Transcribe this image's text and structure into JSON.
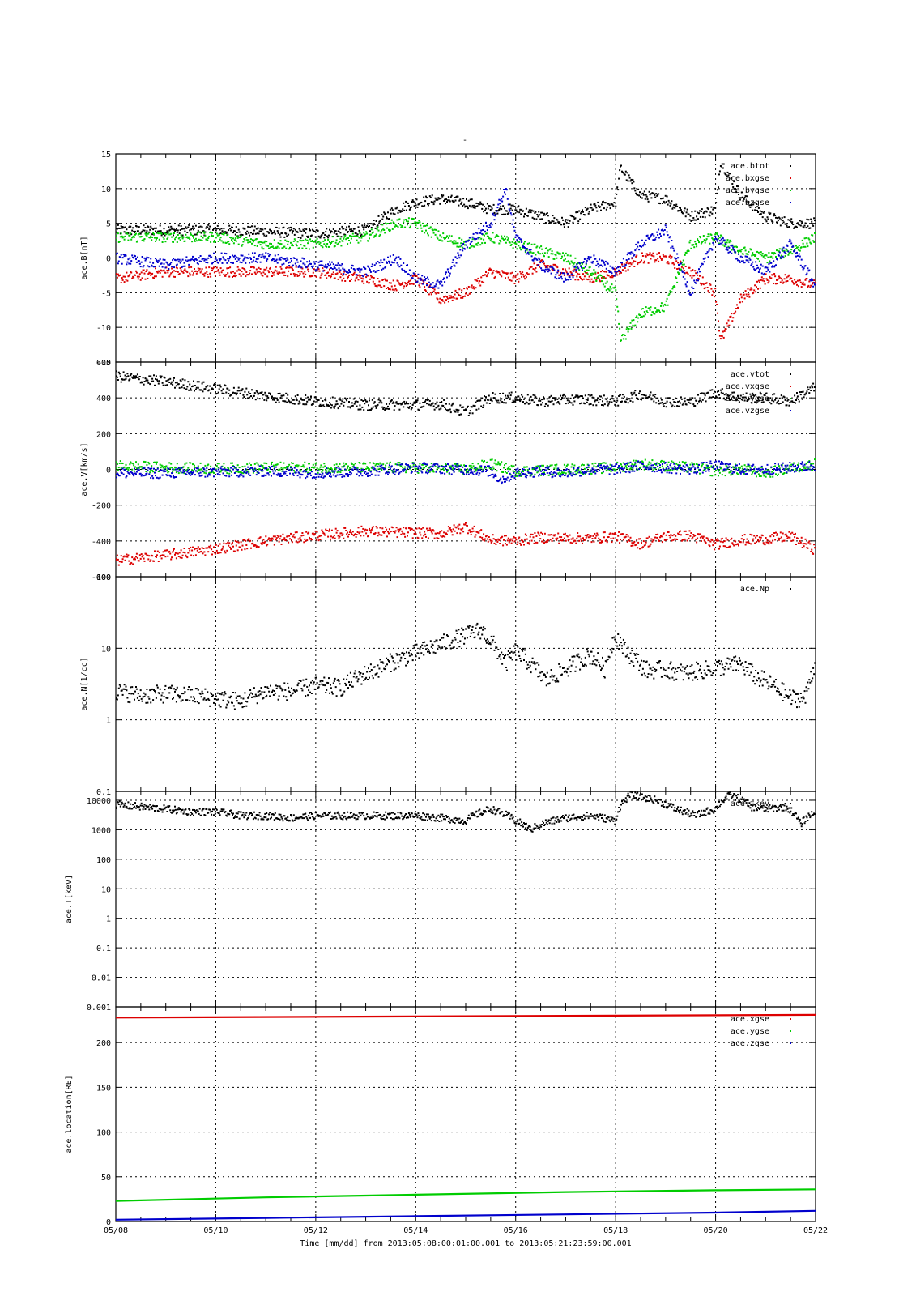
{
  "figure": {
    "title": "-",
    "xlabel": "Time [mm/dd]  from 2013:05:08:00:01:00.001  to  2013:05:21:23:59:00.001",
    "x_ticks": [
      "05/08",
      "05/10",
      "05/12",
      "05/14",
      "05/16",
      "05/18",
      "05/20",
      "05/22"
    ]
  },
  "colors": {
    "black": "#000000",
    "red": "#dd0000",
    "green": "#00cc00",
    "blue": "#0000cc",
    "grid": "#000000"
  },
  "chart_data": [
    {
      "type": "scatter",
      "ylabel": "ace.B[nT]",
      "ylim": [
        -15,
        15
      ],
      "yscale": "linear",
      "y_ticks": [
        "15",
        "10",
        "5",
        "0",
        "-5",
        "-10",
        "-15"
      ],
      "x_range_days": [
        8,
        22
      ],
      "legend": "top-right",
      "grid": true,
      "series": [
        {
          "name": "ace.btot",
          "color": "black",
          "x": [
            8,
            9,
            10,
            11,
            12,
            13,
            13.6,
            14,
            14.5,
            15,
            15.5,
            16,
            16.5,
            17,
            17.5,
            18,
            18.1,
            18.5,
            19,
            19.5,
            20,
            20.1,
            20.5,
            21,
            21.5,
            22
          ],
          "y": [
            4,
            4,
            4,
            3.8,
            3.5,
            4,
            7,
            8,
            8.5,
            8,
            7,
            7,
            6,
            5,
            7,
            8,
            13,
            9,
            8.5,
            6,
            7,
            14,
            9,
            6,
            5,
            5
          ]
        },
        {
          "name": "ace.bxgse",
          "color": "red",
          "x": [
            8,
            9,
            10,
            11,
            12,
            13,
            13.6,
            14,
            14.5,
            15,
            15.5,
            16,
            16.5,
            17,
            17.5,
            18,
            18.5,
            19,
            19.5,
            20,
            20.1,
            20.5,
            21,
            21.5,
            22
          ],
          "y": [
            -3,
            -2,
            -2,
            -2,
            -2,
            -3,
            -4,
            -3,
            -6,
            -5,
            -2,
            -3,
            -1,
            -2,
            -3,
            -2,
            0,
            0,
            -2,
            -5,
            -12,
            -6,
            -3,
            -3,
            -4
          ]
        },
        {
          "name": "ace.bygse",
          "color": "green",
          "x": [
            8,
            9,
            10,
            11,
            12,
            13,
            13.6,
            14,
            14.5,
            15,
            15.5,
            16,
            16.5,
            17,
            17.5,
            18,
            18.1,
            18.5,
            19,
            19.5,
            20,
            20.5,
            21,
            21.5,
            22
          ],
          "y": [
            3,
            3,
            3,
            2,
            2,
            3,
            5,
            5,
            3,
            2,
            3,
            2,
            1,
            0,
            -2,
            -5,
            -12,
            -8,
            -7,
            2,
            3,
            1,
            0,
            1,
            3
          ]
        },
        {
          "name": "ace.bzgse",
          "color": "blue",
          "x": [
            8,
            9,
            10,
            11,
            12,
            13,
            13.6,
            14,
            14.5,
            15,
            15.5,
            15.8,
            16,
            16.5,
            17,
            17.5,
            18,
            18.5,
            19,
            19.5,
            20,
            20.5,
            21,
            21.5,
            22
          ],
          "y": [
            0,
            -1,
            0,
            0,
            -1,
            -2,
            0,
            -3,
            -4,
            2,
            5,
            10,
            3,
            -1,
            -3,
            0,
            -2,
            2,
            4,
            -5,
            3,
            0,
            -2,
            2,
            -4
          ]
        }
      ]
    },
    {
      "type": "scatter",
      "ylabel": "ace.V[km/s]",
      "ylim": [
        -600,
        600
      ],
      "yscale": "linear",
      "y_ticks": [
        "600",
        "400",
        "200",
        "0",
        "-200",
        "-400",
        "-600"
      ],
      "x_range_days": [
        8,
        22
      ],
      "legend": "top-right",
      "grid": true,
      "series": [
        {
          "name": "ace.vtot",
          "color": "black",
          "x": [
            8,
            9,
            10,
            11,
            12,
            13,
            14,
            14.5,
            15,
            15.5,
            16,
            16.5,
            17,
            17.5,
            18,
            18.5,
            19,
            19.5,
            20,
            20.5,
            21,
            21.5,
            22
          ],
          "y": [
            520,
            490,
            450,
            410,
            380,
            360,
            360,
            365,
            320,
            400,
            400,
            380,
            390,
            390,
            380,
            420,
            380,
            375,
            430,
            400,
            400,
            380,
            460
          ]
        },
        {
          "name": "ace.vxgse",
          "color": "red",
          "x": [
            8,
            9,
            10,
            11,
            12,
            13,
            14,
            14.5,
            15,
            15.5,
            16,
            16.5,
            17,
            17.5,
            18,
            18.5,
            19,
            19.5,
            20,
            20.5,
            21,
            21.5,
            22
          ],
          "y": [
            -510,
            -480,
            -445,
            -400,
            -370,
            -345,
            -355,
            -360,
            -320,
            -395,
            -400,
            -380,
            -385,
            -385,
            -375,
            -415,
            -375,
            -370,
            -420,
            -395,
            -390,
            -375,
            -450
          ]
        },
        {
          "name": "ace.vygse",
          "color": "green",
          "x": [
            8,
            9,
            10,
            11,
            12,
            13,
            14,
            15,
            15.5,
            16,
            16.5,
            17,
            17.5,
            18,
            18.5,
            19,
            19.5,
            20,
            20.5,
            21,
            22
          ],
          "y": [
            20,
            10,
            5,
            10,
            10,
            10,
            10,
            0,
            30,
            -10,
            -5,
            0,
            5,
            10,
            30,
            20,
            10,
            -10,
            0,
            -20,
            30
          ]
        },
        {
          "name": "ace.vzgse",
          "color": "blue",
          "x": [
            8,
            9,
            10,
            11,
            12,
            13,
            14,
            15,
            15.5,
            15.7,
            16,
            16.5,
            17,
            17.5,
            18,
            18.5,
            19,
            19.5,
            20,
            20.5,
            21,
            22
          ],
          "y": [
            -20,
            -20,
            -15,
            -10,
            -20,
            -10,
            10,
            0,
            -10,
            -60,
            -20,
            -10,
            -20,
            0,
            0,
            20,
            10,
            0,
            20,
            0,
            0,
            20
          ]
        }
      ]
    },
    {
      "type": "scatter",
      "ylabel": "ace.N[1/cc]",
      "ylim": [
        0.1,
        100
      ],
      "yscale": "log",
      "y_ticks": [
        "100",
        "10",
        "1",
        "0.1"
      ],
      "x_range_days": [
        8,
        22
      ],
      "legend": "top-right",
      "grid": true,
      "series": [
        {
          "name": "ace.Np",
          "color": "black",
          "x": [
            8,
            8.5,
            9,
            9.5,
            10,
            10.5,
            11,
            11.5,
            12,
            12.5,
            13.2,
            13.9,
            14.1,
            14.6,
            15,
            15.3,
            15.6,
            15.8,
            16,
            16.3,
            16.6,
            17,
            17.5,
            17.8,
            18,
            18.2,
            18.6,
            19,
            19.4,
            19.8,
            20.5,
            20.8,
            21.5,
            21.8,
            22
          ],
          "y": [
            2.5,
            2.2,
            2.3,
            2.2,
            2.0,
            1.8,
            2.5,
            2.5,
            3.0,
            2.8,
            5.0,
            8.0,
            9.0,
            12,
            15,
            18,
            10,
            6,
            9,
            6,
            3.5,
            5,
            8,
            5,
            15,
            9,
            5,
            5,
            4.5,
            5,
            6,
            4,
            2,
            2,
            6
          ]
        }
      ]
    },
    {
      "type": "scatter",
      "ylabel": "ace.T[keV]",
      "ylim": [
        0.001,
        20000
      ],
      "yscale": "log",
      "y_ticks": [
        "10000",
        "1000",
        "100",
        "10",
        "1",
        "0.1",
        "0.01",
        "0.001"
      ],
      "x_range_days": [
        8,
        22
      ],
      "legend": "top-right",
      "grid": true,
      "series": [
        {
          "name": "ace.tkev",
          "color": "black",
          "x": [
            8,
            8.5,
            9,
            9.5,
            10,
            10.5,
            11,
            11.5,
            12,
            12.5,
            13,
            13.5,
            14,
            14.5,
            15,
            15.5,
            16,
            16.3,
            16.5,
            17,
            17.5,
            18,
            18.3,
            18.8,
            19.2,
            19.6,
            20,
            20.3,
            20.7,
            21,
            21.4,
            21.7,
            22
          ],
          "y": [
            7000,
            6000,
            5000,
            4000,
            4000,
            3000,
            3000,
            2500,
            3000,
            3000,
            3000,
            3000,
            3000,
            2500,
            2000,
            5000,
            2000,
            1000,
            1500,
            2500,
            3000,
            2000,
            15000,
            10000,
            5000,
            3000,
            5000,
            15000,
            6000,
            5000,
            6000,
            1500,
            4000
          ]
        }
      ]
    },
    {
      "type": "line",
      "ylabel": "ace.location[RE]",
      "ylim": [
        0,
        240
      ],
      "yscale": "linear",
      "y_ticks": [
        "200",
        "150",
        "100",
        "50",
        "0"
      ],
      "x_range_days": [
        8,
        22
      ],
      "legend": "top-right",
      "grid": true,
      "series": [
        {
          "name": "ace.xgse",
          "color": "red",
          "x": [
            8,
            22
          ],
          "y": [
            228,
            231
          ]
        },
        {
          "name": "ace.ygse",
          "color": "green",
          "x": [
            8,
            11,
            14,
            17,
            20,
            22
          ],
          "y": [
            23,
            27,
            30,
            33,
            35,
            36
          ]
        },
        {
          "name": "ace.zgse",
          "color": "blue",
          "x": [
            8,
            11,
            14,
            17,
            20,
            22
          ],
          "y": [
            2,
            4,
            6,
            8,
            10,
            12
          ]
        }
      ]
    }
  ]
}
